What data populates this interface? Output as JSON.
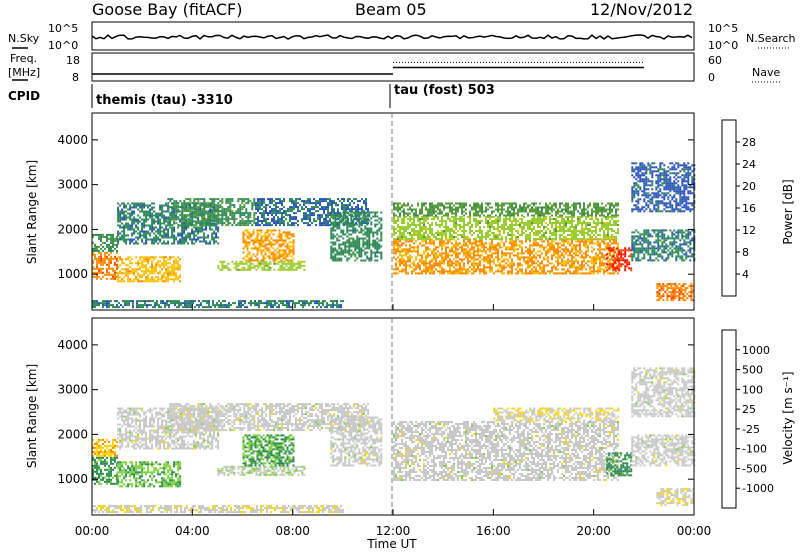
{
  "header": {
    "station": "Goose Bay (fitACF)",
    "beam": "Beam 05",
    "date": "12/Nov/2012"
  },
  "noise_panel": {
    "left_label": "N.Sky",
    "right_label": "N.Search",
    "left_ticks": [
      "10^5",
      "10^0"
    ],
    "right_ticks": [
      "10^5",
      "10^0"
    ]
  },
  "freq_panel": {
    "left_label_line1": "Freq.",
    "left_label_line2": "[MHz]",
    "right_label": "Nave",
    "left_ticks": [
      "18",
      "8"
    ],
    "right_ticks": [
      "60",
      "0"
    ],
    "freq_segments": [
      {
        "start_h": 0,
        "end_h": 12,
        "value": 10.5
      },
      {
        "start_h": 12,
        "end_h": 22,
        "value": 12.8
      }
    ],
    "nave_segments": [
      {
        "start_h": 0,
        "end_h": 12,
        "value": 0
      },
      {
        "start_h": 12,
        "end_h": 22,
        "value": 40
      },
      {
        "start_h": 22,
        "end_h": 24,
        "value": 0
      }
    ]
  },
  "cpid": {
    "label": "CPID",
    "segments": [
      {
        "text": "themis (tau) -3310",
        "start_h": 0
      },
      {
        "text": "tau (fost) 503",
        "start_h": 12
      }
    ]
  },
  "colors": {
    "power_scale": [
      "#0000ff",
      "#2a52be",
      "#2e8b57",
      "#5a9c3b",
      "#9acd32",
      "#ffc000",
      "#ff8c00",
      "#ff4500",
      "#ff0000"
    ],
    "velocity_scale": [
      "#0000ff",
      "#2a52be",
      "#2e8b57",
      "#7dd33f",
      "#c8c8c8",
      "#ffd700",
      "#ff8c00",
      "#ff4500",
      "#ff0000"
    ]
  },
  "chart_data": [
    {
      "type": "heatmap",
      "panel": "power",
      "ylabel": "Slant Range [km]",
      "ylim": [
        200,
        4600
      ],
      "yticks": [
        "1000",
        "2000",
        "3000",
        "4000"
      ],
      "colorbar_label": "Power [dB]",
      "colorbar_ticks": [
        "28",
        "24",
        "20",
        "16",
        "12",
        "8",
        "4"
      ],
      "colorbar_range": [
        0,
        32
      ],
      "regions": [
        {
          "t0": 0.0,
          "t1": 1.0,
          "r0": 900,
          "r1": 1500,
          "level": 24
        },
        {
          "t0": 0.0,
          "t1": 1.0,
          "r0": 1500,
          "r1": 1900,
          "level": 10
        },
        {
          "t0": 1.0,
          "t1": 3.5,
          "r0": 850,
          "r1": 1400,
          "level": 20
        },
        {
          "t0": 1.0,
          "t1": 5.0,
          "r0": 1700,
          "r1": 2600,
          "level": 8
        },
        {
          "t0": 3.0,
          "t1": 6.5,
          "r0": 2100,
          "r1": 2700,
          "level": 10
        },
        {
          "t0": 5.0,
          "t1": 8.5,
          "r0": 1100,
          "r1": 1300,
          "level": 16
        },
        {
          "t0": 6.0,
          "t1": 8.0,
          "r0": 1300,
          "r1": 2000,
          "level": 22
        },
        {
          "t0": 6.5,
          "t1": 11.0,
          "r0": 2100,
          "r1": 2700,
          "level": 7
        },
        {
          "t0": 9.5,
          "t1": 11.5,
          "r0": 1300,
          "r1": 2400,
          "level": 9
        },
        {
          "t0": 12.0,
          "t1": 21.0,
          "r0": 1000,
          "r1": 1800,
          "level": 22
        },
        {
          "t0": 12.0,
          "t1": 21.0,
          "r0": 1800,
          "r1": 2300,
          "level": 16
        },
        {
          "t0": 12.0,
          "t1": 21.0,
          "r0": 2300,
          "r1": 2600,
          "level": 12
        },
        {
          "t0": 20.5,
          "t1": 21.5,
          "r0": 1100,
          "r1": 1600,
          "level": 28
        },
        {
          "t0": 21.5,
          "t1": 24.0,
          "r0": 1300,
          "r1": 2000,
          "level": 8
        },
        {
          "t0": 22.5,
          "t1": 24.0,
          "r0": 400,
          "r1": 800,
          "level": 24
        },
        {
          "t0": 21.5,
          "t1": 24.0,
          "r0": 2400,
          "r1": 3500,
          "level": 6
        },
        {
          "t0": 0.0,
          "t1": 10.0,
          "r0": 250,
          "r1": 420,
          "level": 8
        }
      ]
    },
    {
      "type": "heatmap",
      "panel": "velocity",
      "ylabel": "Slant Range [km]",
      "ylim": [
        200,
        4600
      ],
      "yticks": [
        "1000",
        "2000",
        "3000",
        "4000"
      ],
      "colorbar_label": "Velocity [m s⁻¹]",
      "colorbar_ticks": [
        "1000",
        "500",
        "100",
        "25",
        "-25",
        "-100",
        "-500",
        "-1000"
      ],
      "colorbar_range": [
        -1000,
        1000
      ],
      "regions": [
        {
          "t0": 0.0,
          "t1": 1.0,
          "r0": 900,
          "r1": 1500,
          "level": -400
        },
        {
          "t0": 0.0,
          "t1": 1.0,
          "r0": 1500,
          "r1": 1900,
          "level": 300
        },
        {
          "t0": 1.0,
          "t1": 3.5,
          "r0": 850,
          "r1": 1400,
          "level": -300
        },
        {
          "t0": 1.0,
          "t1": 5.0,
          "r0": 1700,
          "r1": 2600,
          "level": 0
        },
        {
          "t0": 3.0,
          "t1": 6.5,
          "r0": 2100,
          "r1": 2700,
          "level": 0
        },
        {
          "t0": 5.0,
          "t1": 8.5,
          "r0": 1100,
          "r1": 1300,
          "level": -60
        },
        {
          "t0": 6.0,
          "t1": 8.0,
          "r0": 1300,
          "r1": 2000,
          "level": -350
        },
        {
          "t0": 6.5,
          "t1": 11.0,
          "r0": 2100,
          "r1": 2700,
          "level": 0
        },
        {
          "t0": 9.5,
          "t1": 11.5,
          "r0": 1300,
          "r1": 2400,
          "level": 0
        },
        {
          "t0": 12.0,
          "t1": 21.0,
          "r0": 1000,
          "r1": 2300,
          "level": 0
        },
        {
          "t0": 16.0,
          "t1": 21.0,
          "r0": 2300,
          "r1": 2600,
          "level": 80
        },
        {
          "t0": 20.5,
          "t1": 21.5,
          "r0": 1100,
          "r1": 1600,
          "level": -400
        },
        {
          "t0": 21.5,
          "t1": 24.0,
          "r0": 1300,
          "r1": 2000,
          "level": 0
        },
        {
          "t0": 22.5,
          "t1": 24.0,
          "r0": 400,
          "r1": 800,
          "level": 60
        },
        {
          "t0": 21.5,
          "t1": 24.0,
          "r0": 2400,
          "r1": 3500,
          "level": 0
        },
        {
          "t0": 0.0,
          "t1": 10.0,
          "r0": 250,
          "r1": 420,
          "level": 60
        }
      ]
    }
  ],
  "x_axis": {
    "ticks": [
      "00:00",
      "04:00",
      "08:00",
      "12:00",
      "16:00",
      "20:00",
      "00:00"
    ],
    "label": "Time UT"
  }
}
